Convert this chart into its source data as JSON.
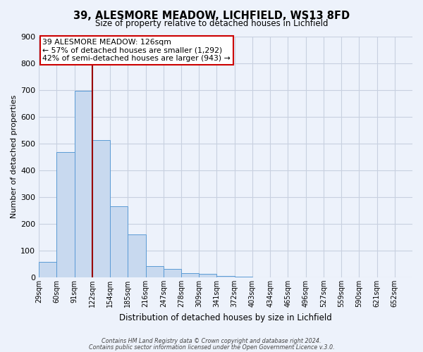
{
  "title1": "39, ALESMORE MEADOW, LICHFIELD, WS13 8FD",
  "title2": "Size of property relative to detached houses in Lichfield",
  "xlabel": "Distribution of detached houses by size in Lichfield",
  "ylabel": "Number of detached properties",
  "bin_labels": [
    "29sqm",
    "60sqm",
    "91sqm",
    "122sqm",
    "154sqm",
    "185sqm",
    "216sqm",
    "247sqm",
    "278sqm",
    "309sqm",
    "341sqm",
    "372sqm",
    "403sqm",
    "434sqm",
    "465sqm",
    "496sqm",
    "527sqm",
    "559sqm",
    "590sqm",
    "621sqm",
    "652sqm"
  ],
  "bar_heights": [
    58,
    468,
    697,
    513,
    265,
    160,
    43,
    32,
    15,
    12,
    5,
    3,
    0,
    0,
    0,
    0,
    0,
    0,
    0,
    0,
    0
  ],
  "bar_color": "#c8d9ef",
  "bar_edge_color": "#5b9bd5",
  "annotation_text": "39 ALESMORE MEADOW: 126sqm\n← 57% of detached houses are smaller (1,292)\n42% of semi-detached houses are larger (943) →",
  "annotation_box_color": "#ffffff",
  "annotation_box_edge": "#cc0000",
  "vline_color": "#990000",
  "ylim": [
    0,
    900
  ],
  "yticks": [
    0,
    100,
    200,
    300,
    400,
    500,
    600,
    700,
    800,
    900
  ],
  "footer1": "Contains HM Land Registry data © Crown copyright and database right 2024.",
  "footer2": "Contains public sector information licensed under the Open Government Licence v.3.0.",
  "background_color": "#edf2fb",
  "grid_color": "#c8d0e0",
  "prop_line_bin_index": 3
}
